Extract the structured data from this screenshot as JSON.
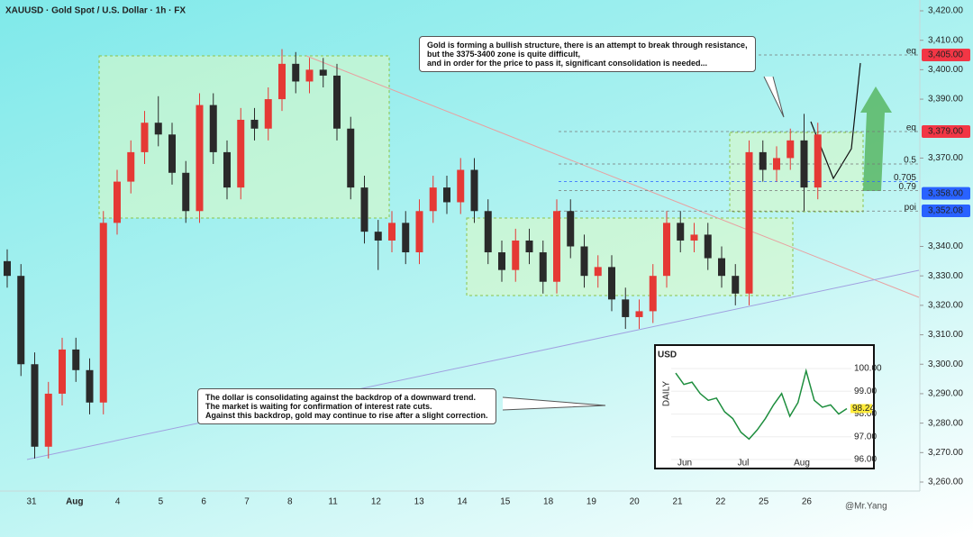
{
  "chart_data": {
    "type": "candlestick",
    "title": "XAUUSD · Gold Spot / U.S. Dollar · 1h · FX",
    "categories": [
      "31",
      "Aug",
      "4",
      "5",
      "6",
      "7",
      "8",
      "11",
      "12",
      "13",
      "14",
      "15",
      "18",
      "19",
      "20",
      "21",
      "22",
      "25",
      "26"
    ],
    "open": [
      3335,
      3330,
      3300,
      3272,
      3290,
      3305,
      3298,
      3287,
      3348,
      3362,
      3372,
      3382,
      3378,
      3365,
      3352,
      3388,
      3372,
      3360,
      3383,
      3380,
      3390,
      3402,
      3396,
      3400,
      3398,
      3380,
      3360,
      3345,
      3342,
      3348,
      3338,
      3352,
      3360,
      3355,
      3366,
      3352,
      3338,
      3332,
      3342,
      3338,
      3328,
      3352,
      3340,
      3330,
      3333,
      3322,
      3316,
      3318,
      3330,
      3348,
      3342,
      3344,
      3336,
      3330,
      3324,
      3372,
      3366,
      3370,
      3376,
      3360
    ],
    "high": [
      3339,
      3334,
      3304,
      3294,
      3309,
      3309,
      3302,
      3352,
      3366,
      3376,
      3386,
      3391,
      3382,
      3369,
      3392,
      3392,
      3376,
      3387,
      3387,
      3394,
      3407,
      3406,
      3404,
      3404,
      3402,
      3384,
      3364,
      3349,
      3352,
      3352,
      3356,
      3364,
      3364,
      3370,
      3370,
      3356,
      3342,
      3346,
      3346,
      3342,
      3356,
      3356,
      3344,
      3337,
      3337,
      3326,
      3322,
      3334,
      3352,
      3352,
      3348,
      3348,
      3340,
      3334,
      3376,
      3376,
      3374,
      3380,
      3385,
      3382
    ],
    "low": [
      3326,
      3296,
      3268,
      3268,
      3286,
      3294,
      3283,
      3283,
      3344,
      3358,
      3368,
      3374,
      3361,
      3348,
      3348,
      3368,
      3356,
      3356,
      3376,
      3376,
      3386,
      3392,
      3392,
      3394,
      3376,
      3356,
      3341,
      3332,
      3338,
      3334,
      3334,
      3348,
      3351,
      3351,
      3348,
      3334,
      3328,
      3328,
      3334,
      3324,
      3324,
      3336,
      3326,
      3326,
      3318,
      3312,
      3312,
      3314,
      3326,
      3338,
      3338,
      3332,
      3326,
      3320,
      3320,
      3362,
      3362,
      3366,
      3352,
      3356
    ],
    "close": [
      3330,
      3300,
      3272,
      3290,
      3305,
      3298,
      3287,
      3348,
      3362,
      3372,
      3382,
      3378,
      3365,
      3352,
      3388,
      3372,
      3360,
      3383,
      3380,
      3390,
      3402,
      3396,
      3400,
      3398,
      3380,
      3360,
      3345,
      3342,
      3348,
      3338,
      3352,
      3360,
      3355,
      3366,
      3352,
      3338,
      3332,
      3342,
      3338,
      3328,
      3352,
      3340,
      3330,
      3333,
      3322,
      3316,
      3318,
      3330,
      3348,
      3342,
      3344,
      3336,
      3330,
      3324,
      3372,
      3366,
      3370,
      3376,
      3360,
      3378
    ],
    "up_color": "#e53935",
    "down_color": "#2a2a2a",
    "ylim": [
      3260,
      3420
    ],
    "yticks": [
      {
        "value": 3420,
        "label": "3,420.00"
      },
      {
        "value": 3410,
        "label": "3,410.00"
      },
      {
        "value": 3400,
        "label": "3,400.00"
      },
      {
        "value": 3390,
        "label": "3,390.00"
      },
      {
        "value": 3370,
        "label": "3,370.00"
      },
      {
        "value": 3340,
        "label": "3,340.00"
      },
      {
        "value": 3330,
        "label": "3,330.00"
      },
      {
        "value": 3320,
        "label": "3,320.00"
      },
      {
        "value": 3310,
        "label": "3,310.00"
      },
      {
        "value": 3300,
        "label": "3,300.00"
      },
      {
        "value": 3290,
        "label": "3,290.00"
      },
      {
        "value": 3280,
        "label": "3,280.00"
      },
      {
        "value": 3270,
        "label": "3,270.00"
      },
      {
        "value": 3260,
        "label": "3,260.00"
      }
    ],
    "price_tags": [
      {
        "value": 3405,
        "label": "3,405.00",
        "color": "#f23645"
      },
      {
        "value": 3379,
        "label": "3,379.00",
        "color": "#f23645"
      },
      {
        "value": 3358,
        "label": "3,358.00",
        "color": "#2962ff"
      },
      {
        "value": 3352.08,
        "label": "3,352.08",
        "color": "#2962ff"
      }
    ],
    "levels": [
      {
        "value": 3405,
        "label": "eq"
      },
      {
        "value": 3379,
        "label": "eq"
      },
      {
        "value": 3368,
        "label": "0.5"
      },
      {
        "value": 3362,
        "label": "0.705"
      },
      {
        "value": 3359,
        "label": "0.79"
      },
      {
        "value": 3352,
        "label": "poi"
      }
    ],
    "annotations": [
      [
        "Gold is forming a bullish structure, there is an attempt to break through resistance,",
        "but the 3375-3400 zone is quite difficult,",
        "and in order for the price to pass it, significant consolidation is needed..."
      ],
      [
        "The dollar is consolidating against the backdrop of a downward trend.",
        "The market is waiting for confirmation of interest rate cuts.",
        "Against this backdrop, gold may continue to rise after a slight correction."
      ]
    ],
    "watermark": "@Mr.Yang",
    "inset": {
      "title": "USD",
      "axis_label": "DAILY",
      "categories": [
        "Jun",
        "Jul",
        "Aug"
      ],
      "values": [
        99.8,
        99.3,
        99.4,
        98.9,
        98.6,
        98.7,
        98.1,
        97.8,
        97.2,
        96.9,
        97.3,
        97.8,
        98.4,
        98.9,
        97.9,
        98.5,
        99.9,
        98.6,
        98.3,
        98.4,
        98.0,
        98.24
      ],
      "color": "#1e8e3e",
      "ylim": [
        96,
        100
      ],
      "yticks": [
        {
          "value": 100,
          "label": "100.00"
        },
        {
          "value": 99,
          "label": "99.00"
        },
        {
          "value": 98,
          "label": "98.00"
        },
        {
          "value": 97,
          "label": "97.00"
        },
        {
          "value": 96,
          "label": "96.00"
        }
      ],
      "last_label": "98.24"
    }
  }
}
